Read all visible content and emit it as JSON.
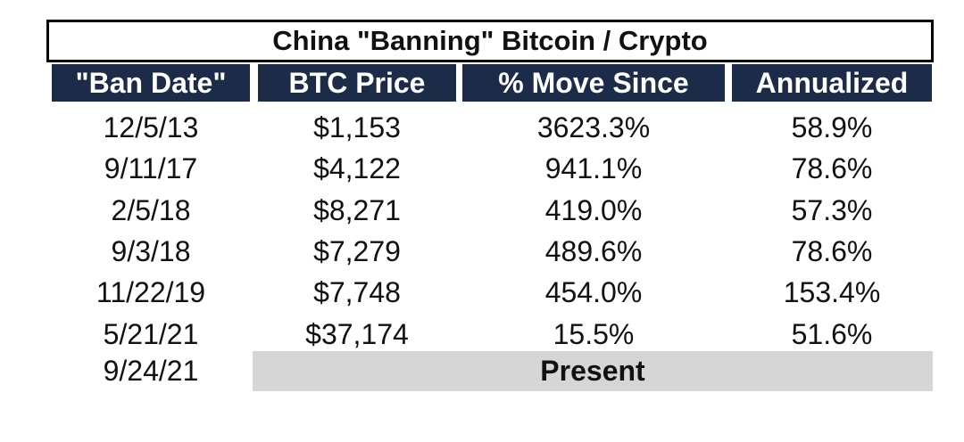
{
  "table": {
    "title": "China \"Banning\" Bitcoin / Crypto",
    "headers": [
      "\"Ban Date\"",
      "BTC Price",
      "% Move Since",
      "Annualized"
    ],
    "rows": [
      [
        "12/5/13",
        "$1,153",
        "3623.3%",
        "58.9%"
      ],
      [
        "9/11/17",
        "$4,122",
        "941.1%",
        "78.6%"
      ],
      [
        "2/5/18",
        "$8,271",
        "419.0%",
        "57.3%"
      ],
      [
        "9/3/18",
        "$7,279",
        "489.6%",
        "78.6%"
      ],
      [
        "11/22/19",
        "$7,748",
        "454.0%",
        "153.4%"
      ],
      [
        "5/21/21",
        "$37,174",
        "15.5%",
        "51.6%"
      ]
    ],
    "last_row": {
      "date": "9/24/21",
      "label": "Present"
    }
  },
  "colors": {
    "header_bg": "#1b2b48",
    "header_text": "#ffffff",
    "present_bg": "#d6d6d6"
  }
}
